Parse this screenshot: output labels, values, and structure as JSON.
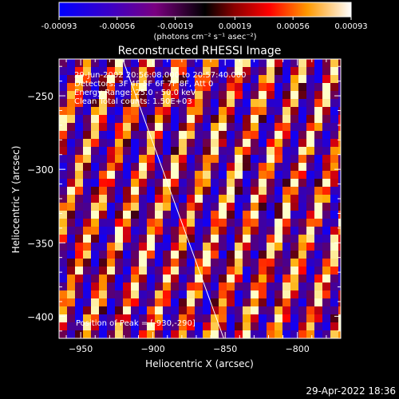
{
  "chart_data": {
    "type": "heatmap",
    "title": "Reconstructed RHESSI Image",
    "xlabel": "Heliocentric X (arcsec)",
    "ylabel": "Heliocentric Y (arcsec)",
    "xlim": [
      -965,
      -770
    ],
    "ylim": [
      -415,
      -225
    ],
    "x_ticks": [
      -950,
      -900,
      -850,
      -800
    ],
    "y_ticks": [
      -250,
      -300,
      -350,
      -400
    ],
    "colorbar": {
      "range": [
        -0.00093,
        0.00093
      ],
      "tick_values": [
        -0.00093,
        -0.00056,
        -0.00019,
        0.00019,
        0.00056,
        0.00093
      ],
      "tick_labels": [
        "-0.00093",
        "-0.00056",
        "-0.00019",
        "0.00019",
        "0.00056",
        "0.00093"
      ],
      "units_label": "(photons cm⁻² s⁻¹ asec⁻²)"
    },
    "annotations": [
      "29-Jun-2002 20:56:08.000 to 20:57:40.000",
      "Detectors: 3F 4F 5F 6F 7F 8F, Att 0",
      "Energy Range: 25.0 - 50.0 keV",
      "Clean   Total counts: 1.50E+03",
      "Position of Peak = [-930,-290]"
    ],
    "limb_line": {
      "x": [
        -921,
        -851
      ],
      "y": [
        -225,
        -415
      ]
    },
    "pattern": {
      "stripe_direction": "diagonal",
      "grid_on": false
    }
  },
  "footer": {
    "timestamp": "29-Apr-2022 18:36"
  },
  "colors": {
    "background": "#000000",
    "limb": "#ffffff"
  }
}
